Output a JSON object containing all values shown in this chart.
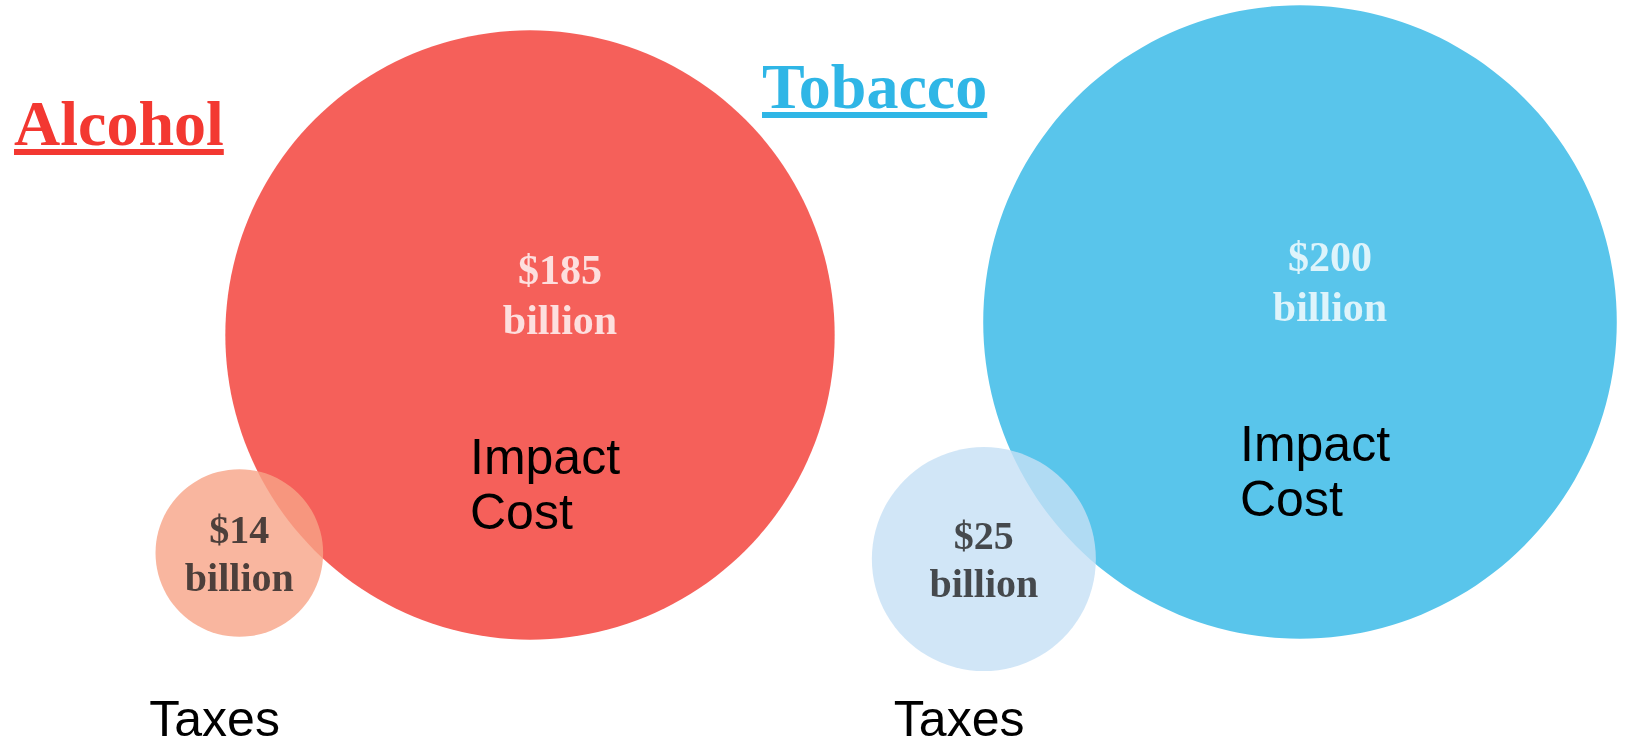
{
  "chart_data": {
    "type": "other",
    "categories": [
      "Taxes",
      "Impact Cost"
    ],
    "series": [
      {
        "name": "Alcohol",
        "color": "#f33831",
        "colors": [
          "#f8a487",
          "#f33831"
        ],
        "values": [
          14,
          185
        ],
        "value_labels": [
          "$14 billion",
          "$185 billion"
        ]
      },
      {
        "name": "Tobacco",
        "color": "#2fb6e6",
        "colors": [
          "#c5e0f5",
          "#2fb6e6"
        ],
        "values": [
          25,
          200
        ],
        "value_labels": [
          "$25 billion",
          "$200 billion"
        ]
      }
    ]
  }
}
